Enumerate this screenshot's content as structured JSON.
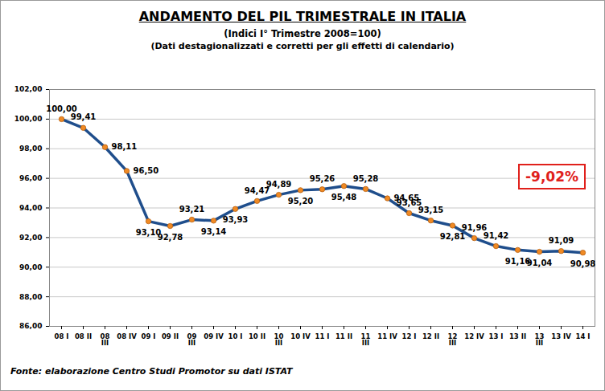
{
  "chart_data": {
    "type": "line",
    "title": "ANDAMENTO DEL PIL TRIMESTRALE IN ITALIA",
    "subtitle": [
      "(Indici I° Trimestre 2008=100)",
      "(Dati destagionalizzati e corretti per gli effetti di calendario)"
    ],
    "annotation": "-9,02%",
    "source": "Fonte: elaborazione Centro Studi Promotor su dati ISTAT",
    "categories": [
      "08 I",
      "08 II",
      "08 III",
      "08 IV",
      "09 I",
      "09 II",
      "09 III",
      "09 IV",
      "10 I",
      "10 II",
      "10 III",
      "10 IV",
      "11 I",
      "11 II",
      "11 III",
      "11 IV",
      "12 I",
      "12 II",
      "12 III",
      "12 IV",
      "13 I",
      "13 II",
      "13 III",
      "13 IV",
      "14 I"
    ],
    "values": [
      100.0,
      99.41,
      98.11,
      96.5,
      93.1,
      92.78,
      93.21,
      93.14,
      93.93,
      94.47,
      94.89,
      95.2,
      95.26,
      95.48,
      95.28,
      94.65,
      93.65,
      93.15,
      92.81,
      91.96,
      91.42,
      91.16,
      91.04,
      91.09,
      90.98
    ],
    "value_labels": [
      "100,00",
      "99,41",
      "98,11",
      "96,50",
      "93,10",
      "92,78",
      "93,21",
      "93,14",
      "93,93",
      "94,47",
      "94,89",
      "95,20",
      "95,26",
      "95,48",
      "95,28",
      "94,65",
      "93,65",
      "93,15",
      "92,81",
      "91,96",
      "91,42",
      "91,16",
      "91,04",
      "91,09",
      "90,98"
    ],
    "color": "#1f4e8c",
    "marker": "circle",
    "ylim": [
      86,
      102
    ],
    "yticks": [
      {
        "value": 86,
        "label": "86,00"
      },
      {
        "value": 88,
        "label": "88,00"
      },
      {
        "value": 90,
        "label": "90,00"
      },
      {
        "value": 92,
        "label": "92,00"
      },
      {
        "value": 94,
        "label": "94,00"
      },
      {
        "value": 96,
        "label": "96,00"
      },
      {
        "value": 98,
        "label": "98,00"
      },
      {
        "value": 100,
        "label": "100,00"
      },
      {
        "value": 102,
        "label": "102,00"
      }
    ],
    "grid": true,
    "data_labels": true
  }
}
